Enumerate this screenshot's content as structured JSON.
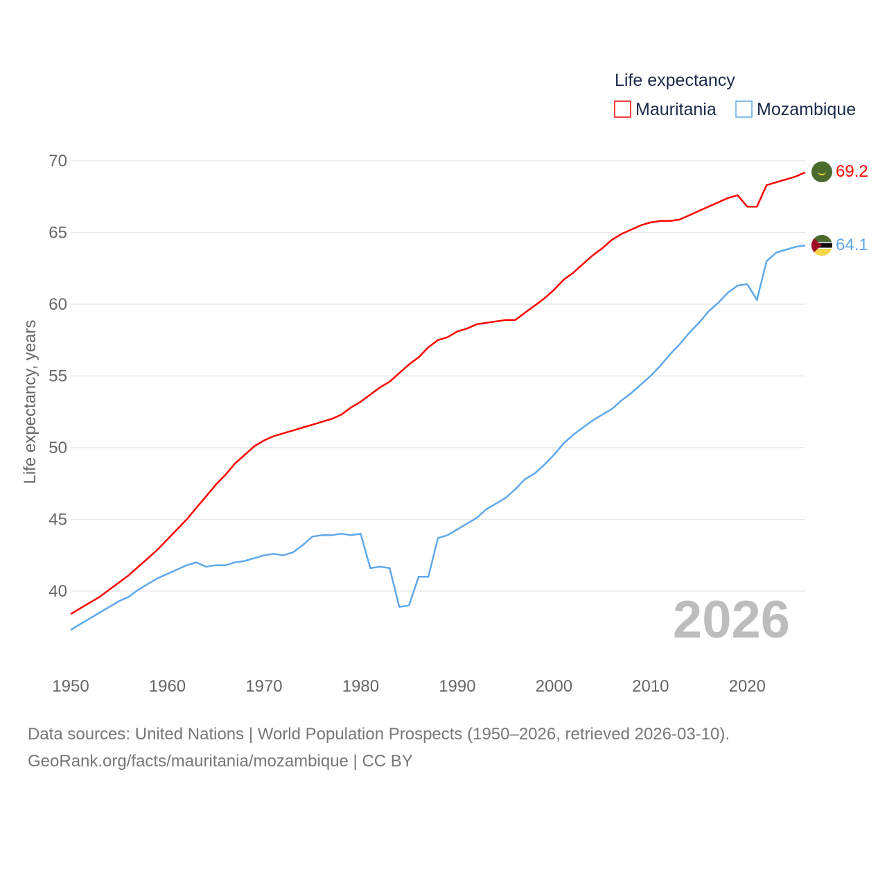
{
  "chart_data": {
    "type": "line",
    "title": "",
    "xlabel": "",
    "ylabel": "Life expectancy, years",
    "xlim": [
      1950,
      2026
    ],
    "ylim": [
      36,
      70
    ],
    "xticks": [
      "1950",
      "1960",
      "1970",
      "1980",
      "1990",
      "2000",
      "2010",
      "2020"
    ],
    "yticks": [
      "40",
      "45",
      "50",
      "55",
      "60",
      "65",
      "70"
    ],
    "legend_title": "Life expectancy",
    "legend_position": "top-right",
    "year_watermark": "2026",
    "x": [
      1950,
      1951,
      1952,
      1953,
      1954,
      1955,
      1956,
      1957,
      1958,
      1959,
      1960,
      1961,
      1962,
      1963,
      1964,
      1965,
      1966,
      1967,
      1968,
      1969,
      1970,
      1971,
      1972,
      1973,
      1974,
      1975,
      1976,
      1977,
      1978,
      1979,
      1980,
      1981,
      1982,
      1983,
      1984,
      1985,
      1986,
      1987,
      1988,
      1989,
      1990,
      1991,
      1992,
      1993,
      1994,
      1995,
      1996,
      1997,
      1998,
      1999,
      2000,
      2001,
      2002,
      2003,
      2004,
      2005,
      2006,
      2007,
      2008,
      2009,
      2010,
      2011,
      2012,
      2013,
      2014,
      2015,
      2016,
      2017,
      2018,
      2019,
      2020,
      2021,
      2022,
      2023,
      2024,
      2025,
      2026
    ],
    "series": [
      {
        "name": "Mauritania",
        "color": "#ff0000",
        "end_label": "69.2",
        "values": [
          38.4,
          38.8,
          39.2,
          39.6,
          40.1,
          40.6,
          41.1,
          41.7,
          42.3,
          42.9,
          43.6,
          44.3,
          45.0,
          45.8,
          46.6,
          47.4,
          48.1,
          48.9,
          49.5,
          50.1,
          50.5,
          50.8,
          51.0,
          51.2,
          51.4,
          51.6,
          51.8,
          52.0,
          52.3,
          52.8,
          53.2,
          53.7,
          54.2,
          54.6,
          55.2,
          55.8,
          56.3,
          57.0,
          57.5,
          57.7,
          58.1,
          58.3,
          58.6,
          58.7,
          58.8,
          58.9,
          58.9,
          59.4,
          59.9,
          60.4,
          61.0,
          61.7,
          62.2,
          62.8,
          63.4,
          63.9,
          64.5,
          64.9,
          65.2,
          65.5,
          65.7,
          65.8,
          65.8,
          65.9,
          66.2,
          66.5,
          66.8,
          67.1,
          67.4,
          67.6,
          66.8,
          66.8,
          68.3,
          68.5,
          68.7,
          68.9,
          69.2
        ]
      },
      {
        "name": "Mozambique",
        "color": "#5fa8ec",
        "end_label": "64.1",
        "values": [
          37.3,
          37.7,
          38.1,
          38.5,
          38.9,
          39.3,
          39.6,
          40.1,
          40.5,
          40.9,
          41.2,
          41.5,
          41.8,
          42.0,
          41.7,
          41.8,
          41.8,
          42.0,
          42.1,
          42.3,
          42.5,
          42.6,
          42.5,
          42.7,
          43.2,
          43.8,
          43.9,
          43.9,
          44.0,
          43.9,
          44.0,
          41.6,
          41.7,
          41.6,
          38.9,
          39.0,
          41.0,
          41.0,
          43.7,
          43.9,
          44.3,
          44.7,
          45.1,
          45.7,
          46.1,
          46.5,
          47.1,
          47.8,
          48.2,
          48.8,
          49.5,
          50.3,
          50.9,
          51.4,
          51.9,
          52.3,
          52.7,
          53.3,
          53.8,
          54.4,
          55.0,
          55.7,
          56.5,
          57.2,
          58.0,
          58.7,
          59.5,
          60.1,
          60.8,
          61.3,
          61.4,
          60.3,
          63.0,
          63.6,
          63.8,
          64.0,
          64.1
        ]
      }
    ]
  },
  "footer": {
    "line1": "Data sources: United Nations | World Population Prospects (1950–2026, retrieved 2026-03-10).",
    "line2": "GeoRank.org/facts/mauritania/mozambique | CC BY"
  }
}
